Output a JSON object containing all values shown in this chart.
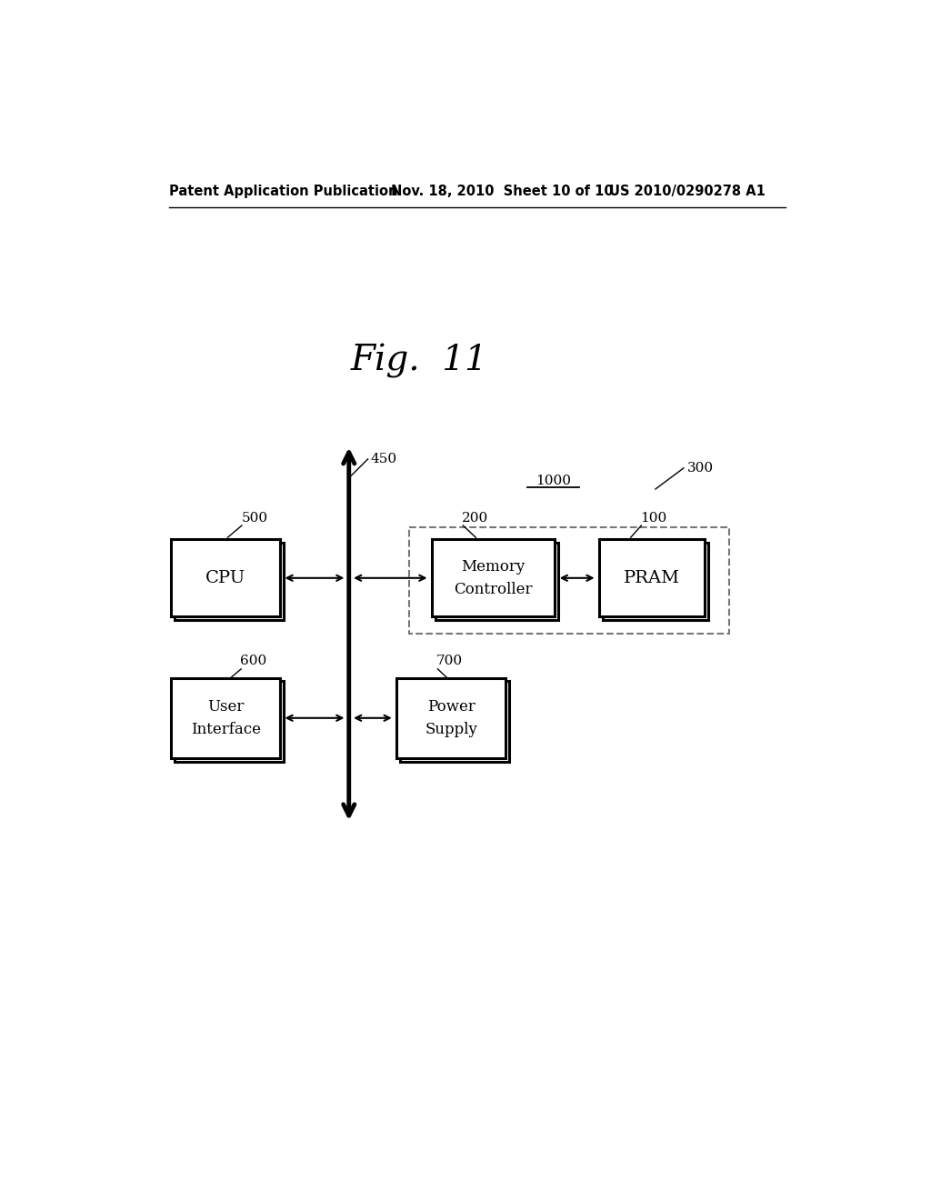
{
  "background_color": "#ffffff",
  "fig_title": "Fig.  11",
  "fig_title_fontsize": 28,
  "header_left": "Patent Application Publication",
  "header_mid": "Nov. 18, 2010  Sheet 10 of 10",
  "header_right": "US 2010/0290278 A1",
  "label_1000": "1000",
  "label_450": "450",
  "label_300": "300",
  "label_500": "500",
  "label_200": "200",
  "label_100": "100",
  "label_600": "600",
  "label_700": "700",
  "cpu_label": "CPU",
  "mc_label": "Memory\nController",
  "pram_label": "PRAM",
  "ui_label": "User\nInterface",
  "ps_label": "Power\nSupply",
  "box_color": "#000000",
  "box_facecolor": "#ffffff",
  "dashed_box_color": "#777777",
  "arrow_color": "#000000"
}
